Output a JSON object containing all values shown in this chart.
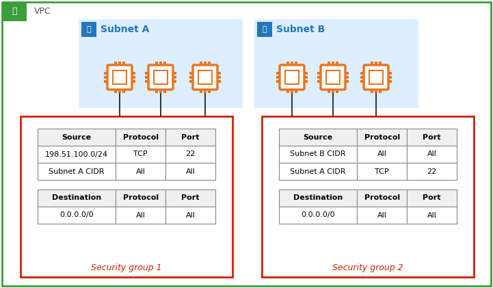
{
  "vpc_label": "VPC",
  "subnet_a_label": "Subnet A",
  "subnet_b_label": "Subnet B",
  "sg1_label": "Security group 1",
  "sg2_label": "Security group 2",
  "sg1_inbound_headers": [
    "Source",
    "Protocol",
    "Port"
  ],
  "sg1_inbound_rows": [
    [
      "198.51.100.0/24",
      "TCP",
      "22"
    ],
    [
      "Subnet A CIDR",
      "All",
      "All"
    ]
  ],
  "sg1_outbound_headers": [
    "Destination",
    "Protocol",
    "Port"
  ],
  "sg1_outbound_rows": [
    [
      "0.0.0.0/0",
      "All",
      "All"
    ]
  ],
  "sg2_inbound_headers": [
    "Source",
    "Protocol",
    "Port"
  ],
  "sg2_inbound_rows": [
    [
      "Subnet B CIDR",
      "All",
      "All"
    ],
    [
      "Subnet A CIDR",
      "TCP",
      "22"
    ]
  ],
  "sg2_outbound_headers": [
    "Destination",
    "Protocol",
    "Port"
  ],
  "sg2_outbound_rows": [
    [
      "0.0.0.0/0",
      "All",
      "All"
    ]
  ],
  "colors": {
    "vpc_border": "#3a9e3a",
    "vpc_bg": "#ffffff",
    "subnet_bg": "#ddeeff",
    "sg_border": "#cc2200",
    "sg_label_color": "#cc2200",
    "table_border": "#888888",
    "chip_body": "#ffffff",
    "chip_pins": "#e87722",
    "subnet_header_bg": "#2277bb",
    "subnet_header_text": "#2277bb",
    "lock_bg": "#2277bb",
    "line_color": "#111111",
    "vpc_header_bg": "#3a9e3a",
    "vpc_text": "#555555"
  }
}
